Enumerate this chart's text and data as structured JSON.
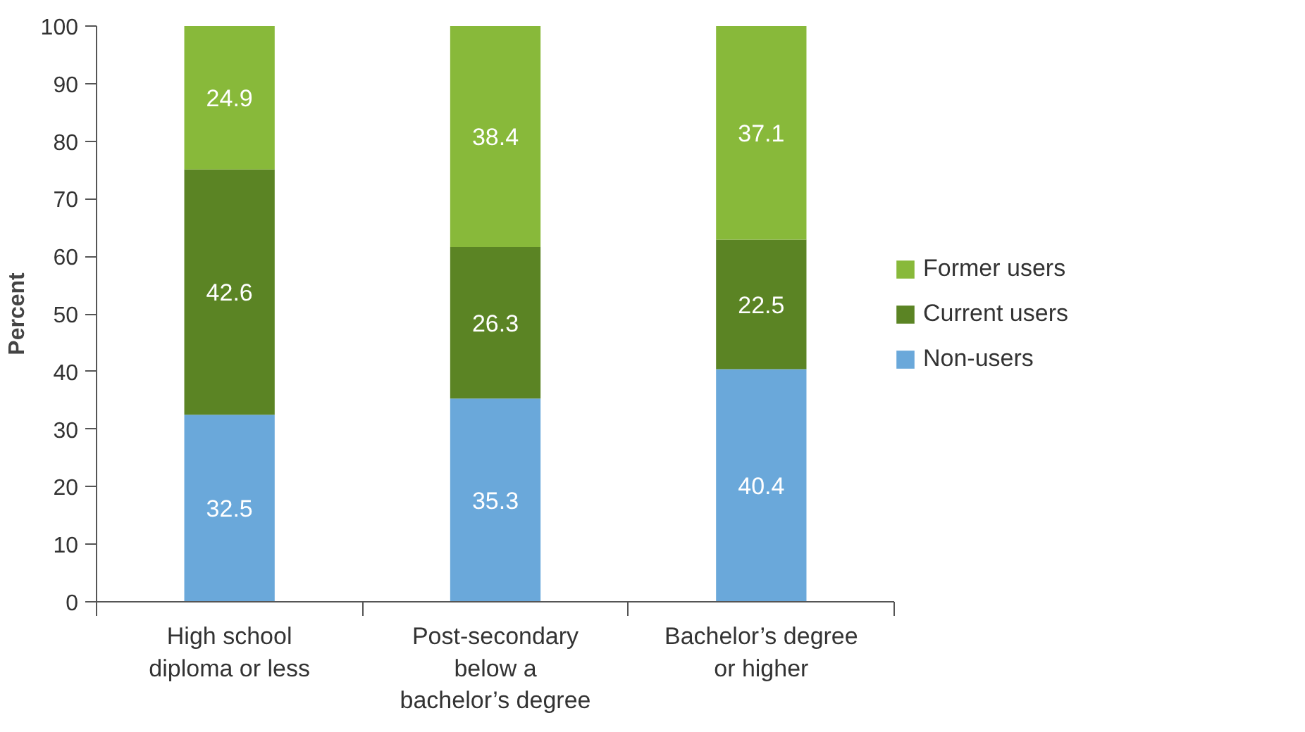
{
  "chart_data": {
    "type": "bar",
    "stacked": true,
    "ylabel": "Percent",
    "categories": [
      "High school diploma or less",
      "Post-secondary below a bachelor’s degree",
      "Bachelor’s degree or higher"
    ],
    "series": [
      {
        "name": "Non-users",
        "color": "#6aa8da",
        "values": [
          32.5,
          35.3,
          40.4
        ]
      },
      {
        "name": "Current users",
        "color": "#5b8424",
        "values": [
          42.6,
          26.3,
          22.5
        ]
      },
      {
        "name": "Former users",
        "color": "#88b93a",
        "values": [
          24.9,
          38.4,
          37.1
        ]
      }
    ],
    "ylim": [
      0,
      100
    ],
    "yticks": [
      0,
      10,
      20,
      30,
      40,
      50,
      60,
      70,
      80,
      90,
      100
    ],
    "data_labels": true,
    "grid": false,
    "legend": "right"
  }
}
